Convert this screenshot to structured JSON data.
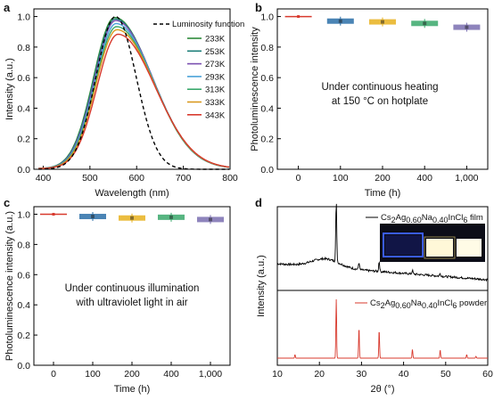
{
  "chart_data": [
    {
      "panel": "a",
      "type": "line",
      "xlabel": "Wavelength (nm)",
      "ylabel": "Intensity (a.u.)",
      "xlim": [
        380,
        800
      ],
      "ylim": [
        0,
        1.05
      ],
      "xticks": [
        400,
        500,
        600,
        700,
        800
      ],
      "yticks": [
        0.0,
        0.2,
        0.4,
        0.6,
        0.8,
        1.0
      ],
      "legend_position": "top-right",
      "reference_curve": {
        "name": "Luminosity function",
        "color": "#000000",
        "dash": true,
        "peak_nm": 555
      },
      "series": [
        {
          "name": "233K",
          "color": "#2e8b3a",
          "peak": 0.99,
          "peak_nm": 553
        },
        {
          "name": "253K",
          "color": "#1e7f7a",
          "peak": 0.98,
          "peak_nm": 554
        },
        {
          "name": "273K",
          "color": "#7a4fb0",
          "peak": 0.97,
          "peak_nm": 555
        },
        {
          "name": "293K",
          "color": "#4aa3d8",
          "peak": 0.95,
          "peak_nm": 556
        },
        {
          "name": "313K",
          "color": "#3aa86b",
          "peak": 0.93,
          "peak_nm": 557
        },
        {
          "name": "333K",
          "color": "#d99a1e",
          "peak": 0.91,
          "peak_nm": 558
        },
        {
          "name": "343K",
          "color": "#d83a2e",
          "peak": 0.88,
          "peak_nm": 560
        }
      ]
    },
    {
      "panel": "b",
      "type": "box",
      "xlabel": "Time (h)",
      "ylabel": "Photoluminescence intensity",
      "categories": [
        "0",
        "100",
        "200",
        "400",
        "1,000"
      ],
      "values": [
        1.0,
        0.97,
        0.965,
        0.955,
        0.93
      ],
      "colors": [
        "#d83a2e",
        "#2a6fa8",
        "#e8b21e",
        "#3aa86b",
        "#7a6fb0"
      ],
      "ylim": [
        0,
        1.05
      ],
      "yticks": [
        0.0,
        0.2,
        0.4,
        0.6,
        0.8,
        1.0
      ],
      "annotation": [
        "Under continuous heating",
        "at 150 °C on hotplate"
      ]
    },
    {
      "panel": "c",
      "type": "box",
      "xlabel": "Time (h)",
      "ylabel": "Photoluminescence intensity (a.u.)",
      "categories": [
        "0",
        "100",
        "200",
        "400",
        "1,000"
      ],
      "values": [
        1.0,
        0.985,
        0.975,
        0.98,
        0.965
      ],
      "colors": [
        "#d83a2e",
        "#2a6fa8",
        "#e8b21e",
        "#3aa86b",
        "#7a6fb0"
      ],
      "ylim": [
        0,
        1.05
      ],
      "yticks": [
        0.0,
        0.2,
        0.4,
        0.6,
        0.8,
        1.0
      ],
      "annotation": [
        "Under continuous illumination",
        "with ultraviolet light in air"
      ]
    },
    {
      "panel": "d",
      "type": "line",
      "xlabel": "2θ (°)",
      "ylabel": "Intensity (a.u.)",
      "xlim": [
        10,
        60
      ],
      "xticks": [
        10,
        20,
        30,
        40,
        50,
        60
      ],
      "series": [
        {
          "name": "Cs2Ag0.60Na0.40InCl6 film",
          "color": "#000000"
        },
        {
          "name": "Cs2Ag0.60Na0.40InCl6 powder",
          "color": "#d83a2e",
          "peaks_2theta": [
            14.2,
            24.0,
            29.4,
            34.2,
            42.1,
            48.7,
            55.0,
            57.2
          ],
          "peak_heights": [
            0.06,
            1.0,
            0.52,
            0.48,
            0.15,
            0.14,
            0.06,
            0.03
          ]
        }
      ]
    }
  ],
  "labels": {
    "panel_a": "a",
    "panel_b": "b",
    "panel_c": "c",
    "panel_d": "d",
    "a_xlabel": "Wavelength (nm)",
    "a_ylabel": "Intensity (a.u.)",
    "b_xlabel": "Time (h)",
    "b_ylabel": "Photoluminescence intensity",
    "c_xlabel": "Time (h)",
    "c_ylabel": "Photoluminescence intensity (a.u.)",
    "d_xlabel_theta": "2θ (°)",
    "d_ylabel": "Intensity (a.u.)",
    "b_note_1": "Under continuous heating",
    "b_note_2": "at 150 °C on hotplate",
    "c_note_1": "Under continuous illumination",
    "c_note_2": "with ultraviolet light in air",
    "d_film_prefix": "Cs",
    "d_film_s1": "2",
    "d_film_mid1": "Ag",
    "d_film_s2": "0.60",
    "d_film_mid2": "Na",
    "d_film_s3": "0.40",
    "d_film_mid3": "InCl",
    "d_film_s4": "6",
    "d_film_suffix": " film",
    "d_pow_suffix": " powder",
    "lum_legend": "Luminosity function"
  }
}
